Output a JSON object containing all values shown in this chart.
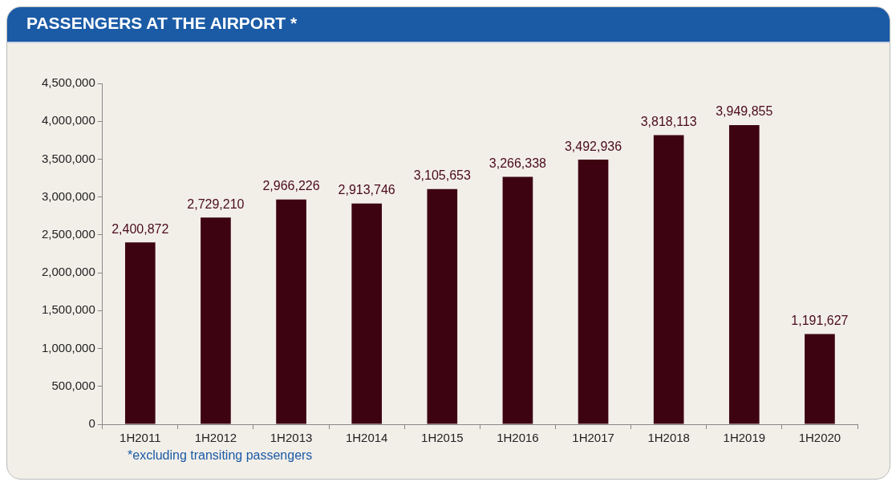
{
  "chart_data": {
    "type": "bar",
    "title": "PASSENGERS AT THE AIRPORT *",
    "categories": [
      "1H2011",
      "1H2012",
      "1H2013",
      "1H2014",
      "1H2015",
      "1H2016",
      "1H2017",
      "1H2018",
      "1H2019",
      "1H2020"
    ],
    "values": [
      2400872,
      2729210,
      2966226,
      2913746,
      3105653,
      3266338,
      3492936,
      3818113,
      3949855,
      1191627
    ],
    "value_labels": [
      "2,400,872",
      "2,729,210",
      "2,966,226",
      "2,913,746",
      "3,105,653",
      "3,266,338",
      "3,492,936",
      "3,818,113",
      "3,949,855",
      "1,191,627"
    ],
    "color": "#3e0311",
    "ylim": [
      0,
      4500000
    ],
    "yticks": [
      {
        "value": 0,
        "label": "0"
      },
      {
        "value": 500000,
        "label": "500,000"
      },
      {
        "value": 1000000,
        "label": "1,000,000"
      },
      {
        "value": 1500000,
        "label": "1,500,000"
      },
      {
        "value": 2000000,
        "label": "2,000,000"
      },
      {
        "value": 2500000,
        "label": "2,500,000"
      },
      {
        "value": 3000000,
        "label": "3,000,000"
      },
      {
        "value": 3500000,
        "label": "3,500,000"
      },
      {
        "value": 4000000,
        "label": "4,000,000"
      },
      {
        "value": 4500000,
        "label": "4,500,000"
      }
    ],
    "grid": false,
    "annotations": [
      "*excluding transiting passengers"
    ]
  }
}
